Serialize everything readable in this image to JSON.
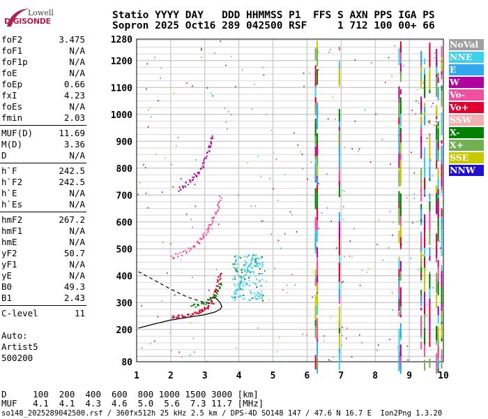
{
  "logo": {
    "top_text": "Lowell",
    "brand_text": "DIGISONDE"
  },
  "header": {
    "line1": "Statio YYYY DAY   DDD HHMMSS P1  FFS S AXN PPS IGA PS",
    "line2": "Sopron 2025 Oct16 289 042500 RSF     1 712 100 00+ 66"
  },
  "params": {
    "group1": [
      {
        "name": "foF2",
        "value": "3.475"
      },
      {
        "name": "foF1",
        "value": "N/A"
      },
      {
        "name": "foF1p",
        "value": "N/A"
      },
      {
        "name": "foE",
        "value": "N/A"
      },
      {
        "name": "foEp",
        "value": "0.66"
      },
      {
        "name": "fxI",
        "value": "4.23"
      },
      {
        "name": "foEs",
        "value": "N/A"
      },
      {
        "name": "fmin",
        "value": "2.03"
      }
    ],
    "group2": [
      {
        "name": "MUF(D)",
        "value": "11.69"
      },
      {
        "name": "M(D)",
        "value": "3.36"
      },
      {
        "name": "D",
        "value": "N/A"
      }
    ],
    "group3": [
      {
        "name": "h`F",
        "value": "242.5"
      },
      {
        "name": "h`F2",
        "value": "242.5"
      },
      {
        "name": "h`E",
        "value": "N/A"
      },
      {
        "name": "h`Es",
        "value": "N/A"
      }
    ],
    "group4": [
      {
        "name": "hmF2",
        "value": "267.2"
      },
      {
        "name": "hmF1",
        "value": "N/A"
      },
      {
        "name": "hmE",
        "value": "N/A"
      },
      {
        "name": "yF2",
        "value": "50.7"
      },
      {
        "name": "yF1",
        "value": "N/A"
      },
      {
        "name": "yE",
        "value": "N/A"
      },
      {
        "name": "B0",
        "value": "49.3"
      },
      {
        "name": "B1",
        "value": "2.43"
      }
    ],
    "group5": [
      {
        "name": "C-level",
        "value": "11"
      }
    ]
  },
  "auto": {
    "line1": "Auto:",
    "line2": "Artist5",
    "line3": "500200"
  },
  "legend": [
    {
      "label": "NoVal",
      "color": "#a0a0a0"
    },
    {
      "label": "NNE",
      "color": "#40d0e8"
    },
    {
      "label": "E",
      "color": "#30a8f0"
    },
    {
      "label": "W",
      "color": "#b000a0"
    },
    {
      "label": "Vo-",
      "color": "#f050a0"
    },
    {
      "label": "Vo+",
      "color": "#e00030"
    },
    {
      "label": "SSW",
      "color": "#f0b0b0"
    },
    {
      "label": "X-",
      "color": "#008000"
    },
    {
      "label": "X+",
      "color": "#70b050"
    },
    {
      "label": "SSE",
      "color": "#c8c800"
    },
    {
      "label": "NNW",
      "color": "#2010d0"
    }
  ],
  "chart_data": {
    "type": "scatter",
    "title": "",
    "xlabel": "",
    "ylabel": "",
    "xlim": [
      1,
      10
    ],
    "ylim": [
      80,
      1280
    ],
    "x_ticks": [
      "1",
      "2",
      "3",
      "4",
      "5",
      "6",
      "7",
      "8",
      "9",
      "10"
    ],
    "y_ticks": [
      "80",
      "200",
      "300",
      "400",
      "500",
      "600",
      "700",
      "800",
      "900",
      "1000",
      "1100",
      "1200",
      "1280"
    ],
    "grid": true,
    "traces": [
      {
        "name": "O-trace lower F2 (Vo+)",
        "color": "#e00030",
        "points": [
          [
            2.0,
            250
          ],
          [
            2.4,
            252
          ],
          [
            2.8,
            265
          ],
          [
            3.0,
            280
          ],
          [
            3.2,
            310
          ],
          [
            3.35,
            360
          ],
          [
            3.45,
            420
          ]
        ]
      },
      {
        "name": "O-trace second hop (Vo-)",
        "color": "#f050a0",
        "points": [
          [
            2.0,
            470
          ],
          [
            2.5,
            495
          ],
          [
            2.9,
            540
          ],
          [
            3.1,
            580
          ],
          [
            3.3,
            630
          ],
          [
            3.45,
            700
          ]
        ]
      },
      {
        "name": "Multi-hop (W)",
        "color": "#b000a0",
        "points": [
          [
            2.2,
            720
          ],
          [
            2.6,
            760
          ],
          [
            2.9,
            800
          ],
          [
            3.1,
            870
          ],
          [
            3.2,
            920
          ]
        ]
      },
      {
        "name": "X-trace (X-)",
        "color": "#008000",
        "points": [
          [
            2.6,
            290
          ],
          [
            3.0,
            300
          ],
          [
            3.3,
            330
          ],
          [
            3.5,
            380
          ]
        ]
      },
      {
        "name": "Spread F (NNE)",
        "color": "#40d0e8",
        "points": [
          [
            3.8,
            320
          ],
          [
            4.0,
            360
          ],
          [
            4.2,
            420
          ],
          [
            4.4,
            470
          ],
          [
            4.6,
            440
          ]
        ]
      }
    ],
    "model_curve": {
      "style": "solid",
      "points": [
        [
          1.05,
          205
        ],
        [
          1.5,
          220
        ],
        [
          2.0,
          235
        ],
        [
          2.5,
          245
        ],
        [
          3.0,
          255
        ],
        [
          3.3,
          265
        ],
        [
          3.45,
          275
        ],
        [
          3.5,
          285
        ],
        [
          3.45,
          300
        ],
        [
          3.3,
          320
        ]
      ]
    },
    "extrapolated_curve": {
      "style": "dashed",
      "points": [
        [
          1.05,
          415
        ],
        [
          1.5,
          385
        ],
        [
          2.0,
          350
        ],
        [
          2.5,
          320
        ],
        [
          3.0,
          300
        ],
        [
          3.3,
          295
        ]
      ]
    }
  },
  "footer": {
    "d_line": "D     100  200  400  600  800 1000 1500 3000 [km]",
    "muf_line": "MUF   4.1  4.1  4.3  4.6  5.0  5.6  7.3 11.7 [MHz]",
    "file_line": "so148_2025289042500.rsf / 360fx512h 25 kHz 2.5 km / DPS-4D SO148 147 / 47.6 N 16.7 E  Ion2Png 1.3.20"
  }
}
